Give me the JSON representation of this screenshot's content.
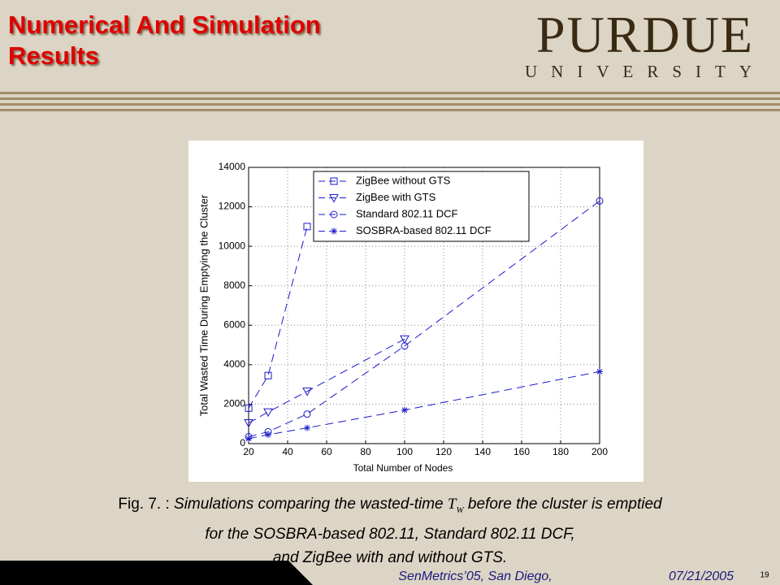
{
  "slide": {
    "title": [
      "Numerical And Simulation",
      "Results"
    ],
    "logo": {
      "name": "PURDUE",
      "sub": "UNIVERSITY"
    },
    "caption": {
      "prefix": "Fig. 7. :",
      "text_a": "Simulations comparing the wasted-time",
      "symbol": "T",
      "symbol_sub": "W",
      "text_b": "before the cluster is emptied",
      "line2": "for the SOSBRA-based 802.11, Standard 802.11 DCF,",
      "line3": "and ZigBee with and without GTS."
    },
    "footer": {
      "venue": "SenMetrics’05, San Diego,",
      "date": "07/21/2005",
      "page": "19"
    }
  },
  "chart_data": {
    "type": "line",
    "x_label": "Total Number of Nodes",
    "y_label": "Total Wasted Time During Emptying the Cluster",
    "xlim": [
      20,
      200
    ],
    "xticks": [
      20,
      40,
      60,
      80,
      100,
      120,
      140,
      160,
      180,
      200
    ],
    "ylim": [
      0,
      14000
    ],
    "yticks": [
      0,
      2000,
      4000,
      6000,
      8000,
      10000,
      12000,
      14000
    ],
    "grid": true,
    "legend": "upper right",
    "linestyle": "dashed",
    "series": [
      {
        "name": "ZigBee without GTS",
        "color": "#1a1acc",
        "marker": "square",
        "x": [
          20,
          30,
          50
        ],
        "values": [
          1800,
          3450,
          11000
        ]
      },
      {
        "name": "ZigBee with GTS",
        "color": "#1a1acc",
        "marker": "triangle-down",
        "x": [
          20,
          30,
          50,
          100
        ],
        "values": [
          1050,
          1600,
          2650,
          5300
        ]
      },
      {
        "name": "Standard 802.11 DCF",
        "color": "#1a1acc",
        "marker": "circle",
        "x": [
          20,
          30,
          50,
          100,
          200
        ],
        "values": [
          350,
          600,
          1500,
          4950,
          12300
        ]
      },
      {
        "name": "SOSBRA-based 802.11 DCF",
        "color": "#1a1acc",
        "marker": "star",
        "x": [
          20,
          30,
          50,
          100,
          200
        ],
        "values": [
          250,
          450,
          800,
          1700,
          3650
        ]
      }
    ]
  }
}
